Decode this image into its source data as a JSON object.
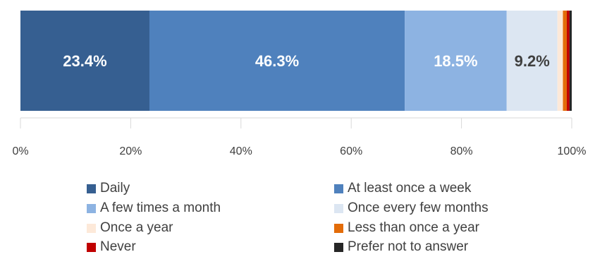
{
  "chart_data": {
    "type": "bar",
    "orientation": "horizontal",
    "stacked": true,
    "xlim": [
      0,
      100
    ],
    "x_ticks": [
      "0%",
      "20%",
      "40%",
      "60%",
      "80%",
      "100%"
    ],
    "grid": false,
    "legend_position": "bottom",
    "series": [
      {
        "name": "Daily",
        "value": 23.4,
        "color": "#365f91",
        "label": "23.4%",
        "label_color": "#ffffff"
      },
      {
        "name": "At least once a week",
        "value": 46.3,
        "color": "#4f81bd",
        "label": "46.3%",
        "label_color": "#ffffff"
      },
      {
        "name": "A few times a month",
        "value": 18.5,
        "color": "#8db3e2",
        "label": "18.5%",
        "label_color": "#ffffff"
      },
      {
        "name": "Once every few months",
        "value": 9.2,
        "color": "#dce6f2",
        "label": "9.2%",
        "label_color": "#404040"
      },
      {
        "name": "Once a year",
        "value": 1.0,
        "color": "#fde9d9",
        "label": "",
        "label_color": "#404040"
      },
      {
        "name": "Less than once a year",
        "value": 0.7,
        "color": "#e36c09",
        "label": "",
        "label_color": "#404040"
      },
      {
        "name": "Never",
        "value": 0.5,
        "color": "#c00000",
        "label": "",
        "label_color": "#404040"
      },
      {
        "name": "Prefer not to answer",
        "value": 0.4,
        "color": "#262626",
        "label": "",
        "label_color": "#404040"
      }
    ]
  }
}
